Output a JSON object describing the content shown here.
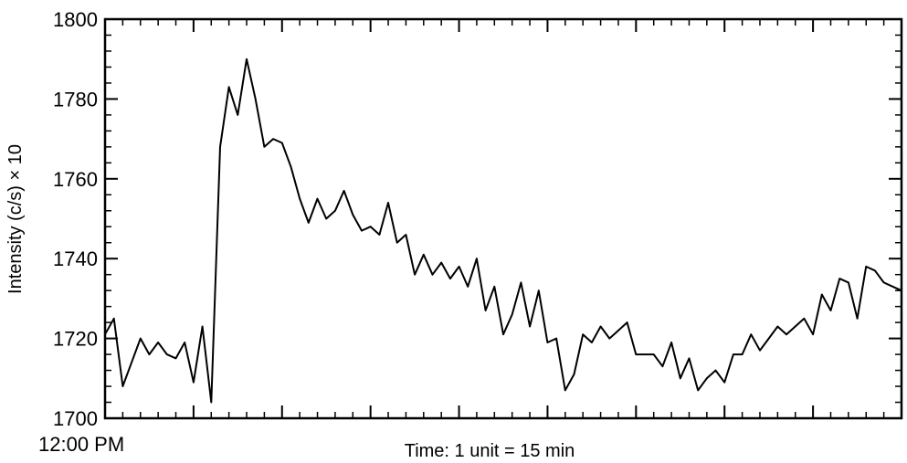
{
  "chart_data": {
    "type": "line",
    "title": "",
    "xlabel": "Time: 1 unit = 15 min",
    "ylabel": "Intensity (c/s) × 10",
    "start_label": "12:00 PM",
    "ylim": [
      1700,
      1800
    ],
    "xlim": [
      0,
      90
    ],
    "yticks": [
      1700,
      1720,
      1740,
      1760,
      1780,
      1800
    ],
    "ytick_labels": [
      "1700",
      "1720",
      "1740",
      "1760",
      "1780",
      "1800"
    ],
    "grid": false,
    "series": [
      {
        "name": "Intensity",
        "x": [
          0,
          1,
          2,
          3,
          4,
          5,
          6,
          7,
          8,
          9,
          10,
          11,
          12,
          13,
          14,
          15,
          16,
          17,
          18,
          19,
          20,
          21,
          22,
          23,
          24,
          25,
          26,
          27,
          28,
          29,
          30,
          31,
          32,
          33,
          34,
          35,
          36,
          37,
          38,
          39,
          40,
          41,
          42,
          43,
          44,
          45,
          46,
          47,
          48,
          49,
          50,
          51,
          52,
          53,
          54,
          55,
          56,
          57,
          58,
          59,
          60,
          61,
          62,
          63,
          64,
          65,
          66,
          67,
          68,
          69,
          70,
          71,
          72,
          73,
          74,
          75,
          76,
          77,
          78,
          79,
          80,
          81,
          82,
          83,
          84,
          85,
          86,
          87,
          88,
          89,
          90
        ],
        "values": [
          1721,
          1725,
          1708,
          1714,
          1720,
          1716,
          1719,
          1716,
          1715,
          1719,
          1709,
          1723,
          1704,
          1768,
          1783,
          1776,
          1790,
          1780,
          1768,
          1770,
          1769,
          1763,
          1755,
          1749,
          1755,
          1750,
          1752,
          1757,
          1751,
          1747,
          1748,
          1746,
          1754,
          1744,
          1746,
          1736,
          1741,
          1736,
          1739,
          1735,
          1738,
          1733,
          1740,
          1727,
          1733,
          1721,
          1726,
          1734,
          1723,
          1732,
          1719,
          1720,
          1707,
          1711,
          1721,
          1719,
          1723,
          1720,
          1722,
          1724,
          1716,
          1716,
          1716,
          1713,
          1719,
          1710,
          1715,
          1707,
          1710,
          1712,
          1709,
          1716,
          1716,
          1721,
          1717,
          1720,
          1723,
          1721,
          1723,
          1725,
          1721,
          1731,
          1727,
          1735,
          1734,
          1725,
          1738,
          1737,
          1734,
          1733,
          1732
        ]
      }
    ]
  }
}
